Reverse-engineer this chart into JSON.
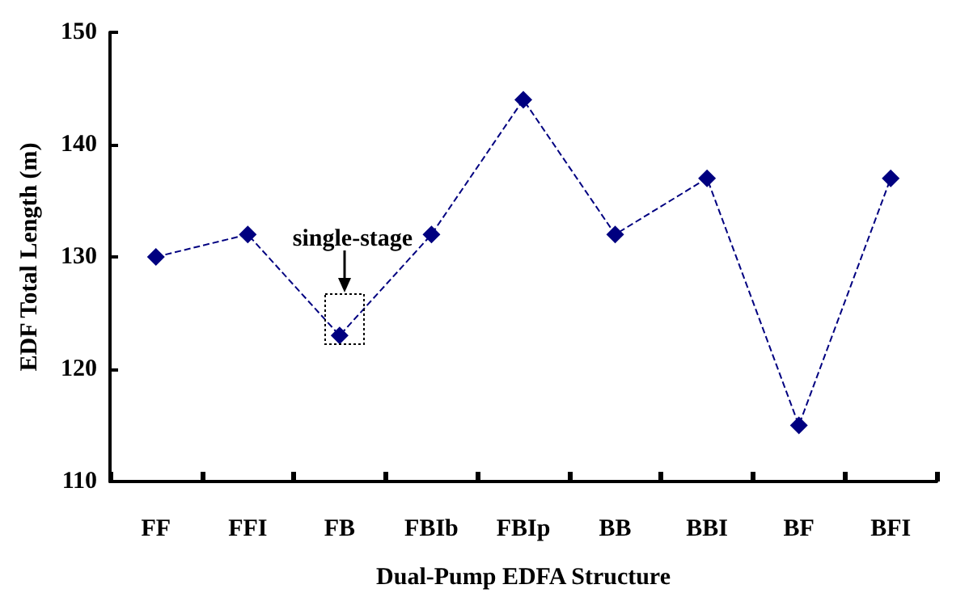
{
  "chart_data": {
    "type": "line",
    "xlabel": "Dual-Pump EDFA Structure",
    "ylabel": "EDF Total Length (m)",
    "categories": [
      "FF",
      "FFI",
      "FB",
      "FBIb",
      "FBIp",
      "BB",
      "BBI",
      "BF",
      "BFI"
    ],
    "series": [
      {
        "color": "#000080",
        "values": [
          130,
          132,
          123,
          132,
          144,
          132,
          137,
          115,
          137
        ]
      }
    ],
    "ylim": [
      110,
      150
    ],
    "yticks": [
      110,
      120,
      130,
      140,
      150
    ],
    "annotations": [
      "single-stage"
    ],
    "grid": false,
    "marker": "diamond",
    "line_style": "dashed"
  }
}
